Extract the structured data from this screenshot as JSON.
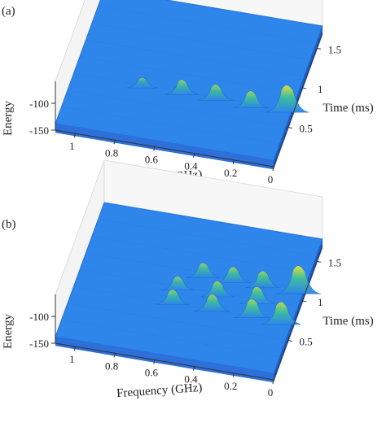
{
  "colors": {
    "surface_low": "#1f6fe0",
    "surface_base": "#2f86ea",
    "floor": "#2e6fd8",
    "peak_mid": "#3fbf9a",
    "peak_high": "#e8e43a",
    "axis": "#333333"
  },
  "chart_data": [
    {
      "panel_label": "(a)",
      "type": "surface3d",
      "xlabel": "Frequency (GHz)",
      "ylabel": "Time (ms)",
      "zlabel": "Energy",
      "x_ticks": [
        "1",
        "0.8",
        "0.6",
        "0.4",
        "0.2",
        "0"
      ],
      "y_ticks": [
        "0.5",
        "1",
        "1.5"
      ],
      "z_ticks": [
        "-100",
        "-150"
      ],
      "xlim": [
        0,
        1.1
      ],
      "ylim": [
        0,
        1.7
      ],
      "zlim": [
        -160,
        -80
      ],
      "peaks": [
        {
          "freq": 0.02,
          "time": 0.6,
          "energy": -82
        },
        {
          "freq": 0.2,
          "time": 0.58,
          "energy": -104
        },
        {
          "freq": 0.38,
          "time": 0.6,
          "energy": -106
        },
        {
          "freq": 0.55,
          "time": 0.6,
          "energy": -108
        },
        {
          "freq": 0.75,
          "time": 0.6,
          "energy": -118
        }
      ]
    },
    {
      "panel_label": "(b)",
      "type": "surface3d",
      "xlabel": "Frequency (GHz)",
      "ylabel": "Time (ms)",
      "zlabel": "Energy",
      "x_ticks": [
        "1",
        "0.8",
        "0.6",
        "0.4",
        "0.2",
        "0"
      ],
      "y_ticks": [
        "0.5",
        "1",
        "1.5"
      ],
      "z_ticks": [
        "-100",
        "-150"
      ],
      "xlim": [
        0,
        1.1
      ],
      "ylim": [
        0,
        1.7
      ],
      "zlim": [
        -160,
        -80
      ],
      "peaks": [
        {
          "freq": 0.02,
          "time": 1.0,
          "energy": -80
        },
        {
          "freq": 0.05,
          "time": 0.6,
          "energy": -92
        },
        {
          "freq": 0.2,
          "time": 1.0,
          "energy": -104
        },
        {
          "freq": 0.35,
          "time": 1.0,
          "energy": -106
        },
        {
          "freq": 0.5,
          "time": 1.0,
          "energy": -108
        },
        {
          "freq": 0.2,
          "time": 0.8,
          "energy": -104
        },
        {
          "freq": 0.4,
          "time": 0.8,
          "energy": -106
        },
        {
          "freq": 0.6,
          "time": 0.8,
          "energy": -110
        },
        {
          "freq": 0.2,
          "time": 0.62,
          "energy": -100
        },
        {
          "freq": 0.4,
          "time": 0.62,
          "energy": -104
        },
        {
          "freq": 0.6,
          "time": 0.62,
          "energy": -108
        }
      ]
    }
  ]
}
